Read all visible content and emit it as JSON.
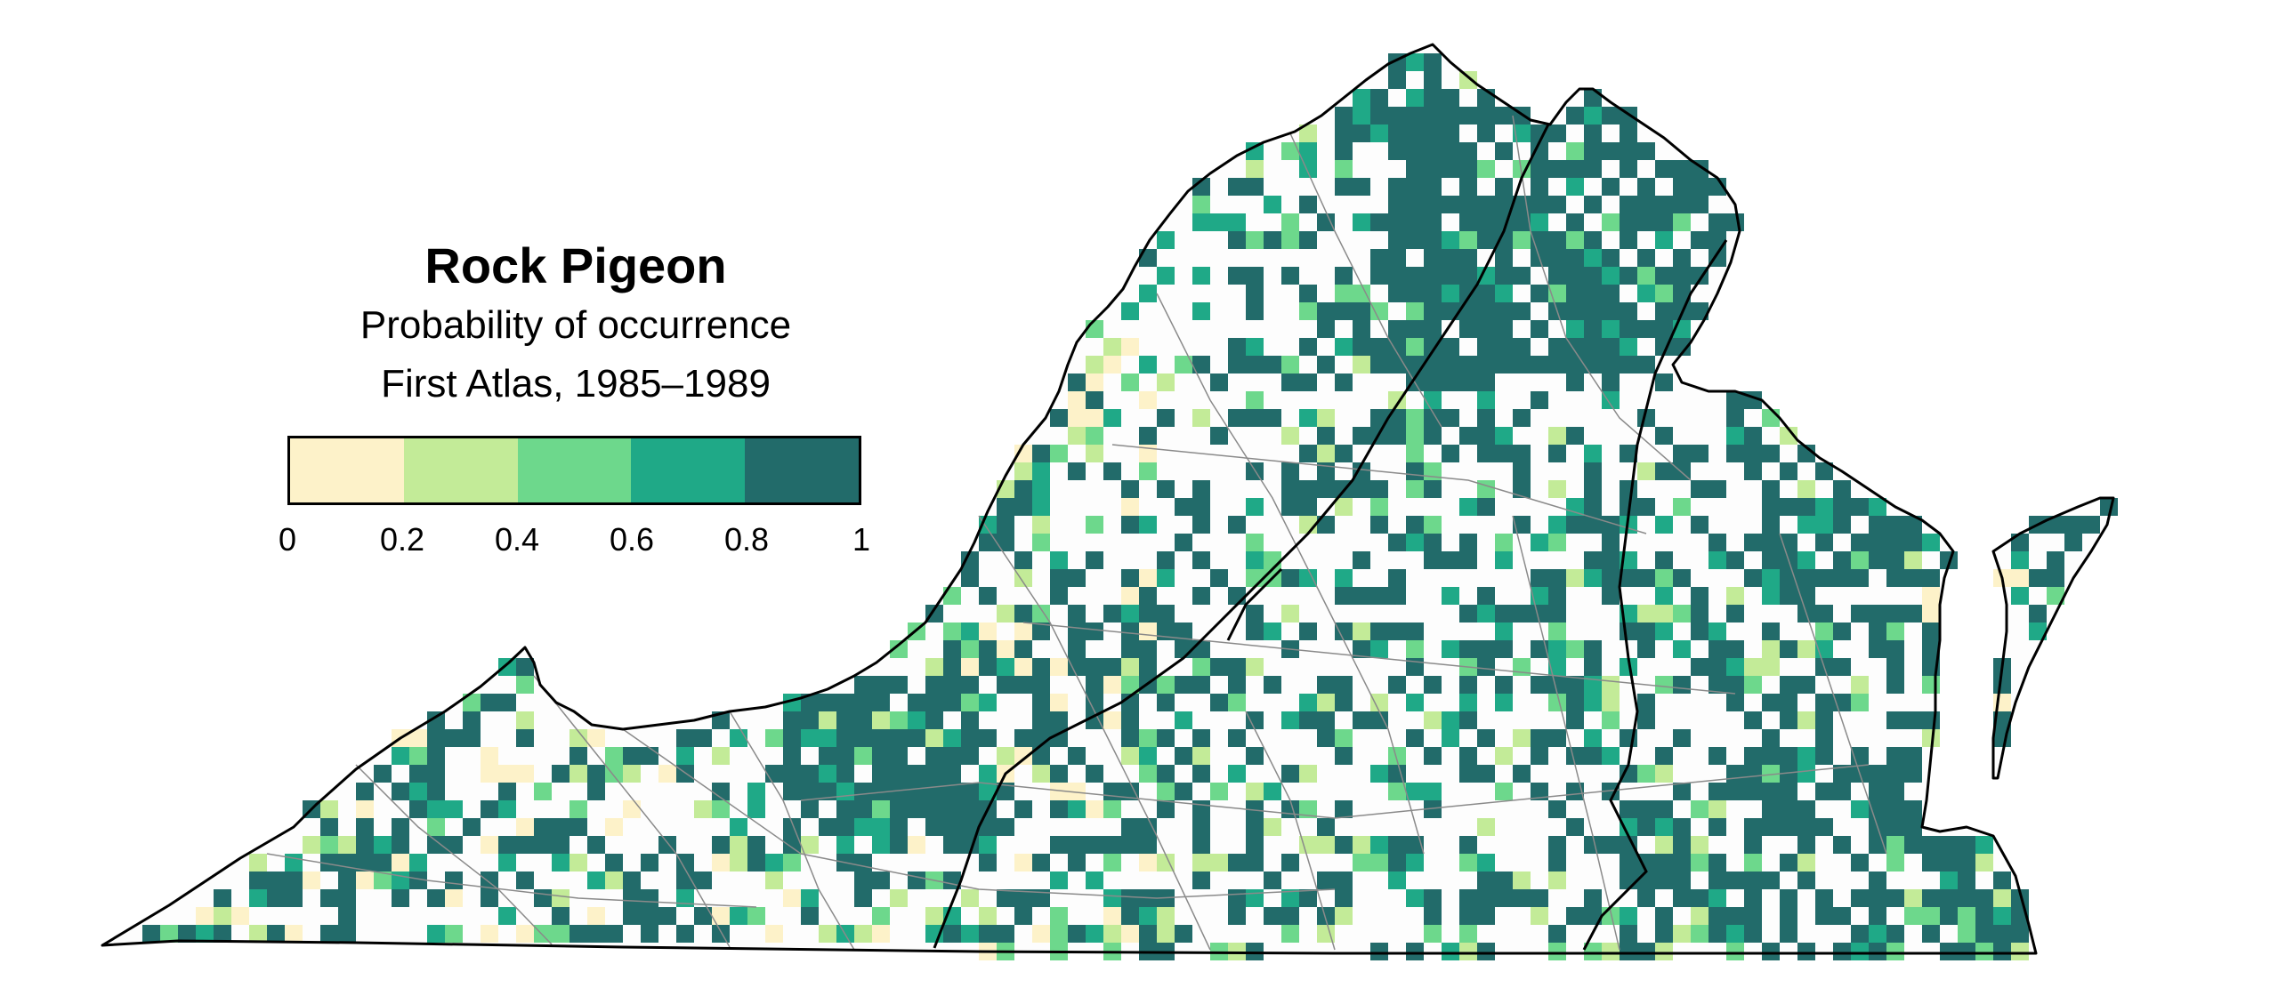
{
  "map": {
    "title": "Rock Pigeon",
    "subtitle": "Probability of occurrence",
    "period": "First Atlas, 1985–1989"
  },
  "legend": {
    "bins": [
      {
        "range": "0–0.2",
        "color": "#fdf2c9"
      },
      {
        "range": "0.2–0.4",
        "color": "#c3eb98"
      },
      {
        "range": "0.4–0.6",
        "color": "#6dd88c"
      },
      {
        "range": "0.6–0.8",
        "color": "#1fa987"
      },
      {
        "range": "0.8–1",
        "color": "#226b6a"
      }
    ],
    "ticks": [
      "0",
      "0.2",
      "0.4",
      "0.6",
      "0.8",
      "1"
    ]
  },
  "colors": {
    "background": "#ffffff",
    "state_fill": "#fdfdfd",
    "state_outline": "#000000",
    "county_lines": "#8a8a8a",
    "region_lines": "#000000"
  }
}
